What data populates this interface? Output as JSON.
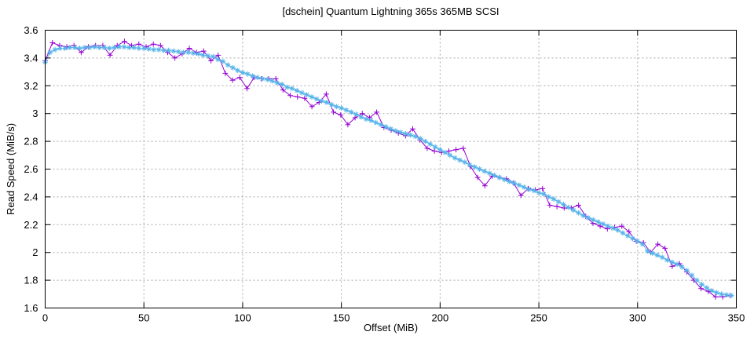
{
  "chart_data": {
    "type": "line",
    "title": "[dschein] Quantum Lightning 365s 365MB SCSI",
    "xlabel": "Offset (MiB)",
    "ylabel": "Read Speed (MiB/s)",
    "xlim": [
      0,
      350
    ],
    "ylim": [
      1.6,
      3.6
    ],
    "grid": true,
    "legend": "none",
    "x_ticks": [
      0,
      50,
      100,
      150,
      200,
      250,
      300,
      350
    ],
    "x_tick_labels": [
      "0",
      "50",
      "100",
      "150",
      "200",
      "250",
      "300",
      "350"
    ],
    "y_ticks": [
      1.6,
      1.8,
      2.0,
      2.2,
      2.4,
      2.6,
      2.8,
      3.0,
      3.2,
      3.4,
      3.6
    ],
    "y_tick_labels": [
      "1.6",
      "1.8",
      "2",
      "2.2",
      "2.4",
      "2.6",
      "2.8",
      "3",
      "3.2",
      "3.4",
      "3.6"
    ],
    "series": [
      {
        "name": "purple-plus",
        "color": "#9400d3",
        "marker": "plus",
        "x": [
          0,
          3.65,
          7.3,
          10.95,
          14.6,
          18.25,
          21.9,
          25.55,
          29.2,
          32.85,
          36.5,
          40.15,
          43.8,
          47.45,
          51.1,
          54.75,
          58.4,
          62.05,
          65.7,
          69.35,
          73,
          76.65,
          80.3,
          83.95,
          87.6,
          91.25,
          94.9,
          98.55,
          102.2,
          105.85,
          109.5,
          113.15,
          116.8,
          120.45,
          124.1,
          127.75,
          131.4,
          135.05,
          138.7,
          142.35,
          146,
          149.65,
          153.3,
          156.95,
          160.6,
          164.25,
          167.9,
          171.55,
          175.2,
          178.85,
          182.5,
          186.15,
          189.8,
          193.45,
          197.1,
          200.75,
          204.4,
          208.05,
          211.7,
          215.35,
          219,
          222.65,
          226.3,
          229.95,
          233.6,
          237.25,
          240.9,
          244.55,
          248.2,
          251.85,
          255.5,
          259.15,
          262.8,
          266.45,
          270.1,
          273.75,
          277.4,
          281.05,
          284.7,
          288.35,
          292,
          295.65,
          299.3,
          302.95,
          306.6,
          310.25,
          313.9,
          317.55,
          321.2,
          324.85,
          328.5,
          332.15,
          335.8,
          339.45,
          343.1,
          346.75
        ],
        "values": [
          3.38,
          3.51,
          3.49,
          3.48,
          3.49,
          3.44,
          3.48,
          3.49,
          3.49,
          3.42,
          3.49,
          3.52,
          3.49,
          3.5,
          3.48,
          3.5,
          3.49,
          3.44,
          3.4,
          3.43,
          3.47,
          3.44,
          3.45,
          3.38,
          3.42,
          3.29,
          3.24,
          3.26,
          3.18,
          3.26,
          3.25,
          3.25,
          3.25,
          3.17,
          3.13,
          3.12,
          3.11,
          3.05,
          3.08,
          3.14,
          3.01,
          2.99,
          2.92,
          2.97,
          3.0,
          2.97,
          3.01,
          2.9,
          2.88,
          2.86,
          2.84,
          2.89,
          2.81,
          2.75,
          2.73,
          2.72,
          2.73,
          2.74,
          2.75,
          2.62,
          2.54,
          2.48,
          2.55,
          2.54,
          2.53,
          2.5,
          2.41,
          2.46,
          2.45,
          2.46,
          2.34,
          2.33,
          2.32,
          2.32,
          2.34,
          2.26,
          2.21,
          2.19,
          2.17,
          2.18,
          2.19,
          2.15,
          2.08,
          2.07,
          2.0,
          2.06,
          2.03,
          1.9,
          1.92,
          1.86,
          1.8,
          1.74,
          1.72,
          1.68,
          1.68,
          1.69
        ]
      },
      {
        "name": "blue-asterisk",
        "color": "#56b4e9",
        "marker": "asterisk",
        "x": [
          0,
          2.5,
          5,
          7.5,
          10,
          12.5,
          15,
          17.5,
          20,
          22.5,
          25,
          27.5,
          30,
          32.5,
          35,
          37.5,
          40,
          42.5,
          45,
          47.5,
          50,
          52.5,
          55,
          57.5,
          60,
          62.5,
          65,
          67.5,
          70,
          72.5,
          75,
          77.5,
          80,
          82.5,
          85,
          87.5,
          90,
          92.5,
          95,
          97.5,
          100,
          102.5,
          105,
          107.5,
          110,
          112.5,
          115,
          117.5,
          120,
          122.5,
          125,
          127.5,
          130,
          132.5,
          135,
          137.5,
          140,
          142.5,
          145,
          147.5,
          150,
          152.5,
          155,
          157.5,
          160,
          162.5,
          165,
          167.5,
          170,
          172.5,
          175,
          177.5,
          180,
          182.5,
          185,
          187.5,
          190,
          192.5,
          195,
          197.5,
          200,
          202.5,
          205,
          207.5,
          210,
          212.5,
          215,
          217.5,
          220,
          222.5,
          225,
          227.5,
          230,
          232.5,
          235,
          237.5,
          240,
          242.5,
          245,
          247.5,
          250,
          252.5,
          255,
          257.5,
          260,
          262.5,
          265,
          267.5,
          270,
          272.5,
          275,
          277.5,
          280,
          282.5,
          285,
          287.5,
          290,
          292.5,
          295,
          297.5,
          300,
          302.5,
          305,
          307.5,
          310,
          312.5,
          315,
          317.5,
          320,
          322.5,
          325,
          327.5,
          330,
          332.5,
          335,
          337.5,
          340,
          342.5,
          345,
          347.5
        ],
        "values": [
          3.37,
          3.44,
          3.46,
          3.47,
          3.47,
          3.475,
          3.475,
          3.47,
          3.475,
          3.475,
          3.48,
          3.475,
          3.475,
          3.47,
          3.475,
          3.48,
          3.48,
          3.475,
          3.475,
          3.47,
          3.47,
          3.465,
          3.46,
          3.46,
          3.455,
          3.455,
          3.45,
          3.445,
          3.44,
          3.44,
          3.435,
          3.43,
          3.42,
          3.415,
          3.41,
          3.39,
          3.375,
          3.35,
          3.33,
          3.31,
          3.295,
          3.285,
          3.27,
          3.26,
          3.25,
          3.245,
          3.235,
          3.22,
          3.21,
          3.19,
          3.18,
          3.165,
          3.15,
          3.135,
          3.12,
          3.105,
          3.09,
          3.08,
          3.065,
          3.05,
          3.04,
          3.025,
          3.01,
          2.995,
          2.975,
          2.96,
          2.95,
          2.935,
          2.92,
          2.905,
          2.89,
          2.875,
          2.865,
          2.855,
          2.845,
          2.835,
          2.82,
          2.8,
          2.78,
          2.76,
          2.74,
          2.72,
          2.7,
          2.68,
          2.665,
          2.65,
          2.63,
          2.615,
          2.6,
          2.585,
          2.57,
          2.555,
          2.54,
          2.525,
          2.51,
          2.5,
          2.485,
          2.47,
          2.455,
          2.445,
          2.43,
          2.42,
          2.4,
          2.385,
          2.365,
          2.345,
          2.325,
          2.305,
          2.285,
          2.265,
          2.25,
          2.235,
          2.22,
          2.205,
          2.19,
          2.175,
          2.16,
          2.14,
          2.12,
          2.1,
          2.08,
          2.06,
          2.01,
          1.995,
          1.98,
          1.965,
          1.945,
          1.93,
          1.915,
          1.895,
          1.87,
          1.835,
          1.8,
          1.77,
          1.745,
          1.725,
          1.71,
          1.7,
          1.695,
          1.69
        ]
      }
    ],
    "appearance": {
      "background": "#ffffff",
      "border_color": "#000000",
      "grid_color": "#a8a8a8",
      "text_color": "#000000"
    }
  }
}
